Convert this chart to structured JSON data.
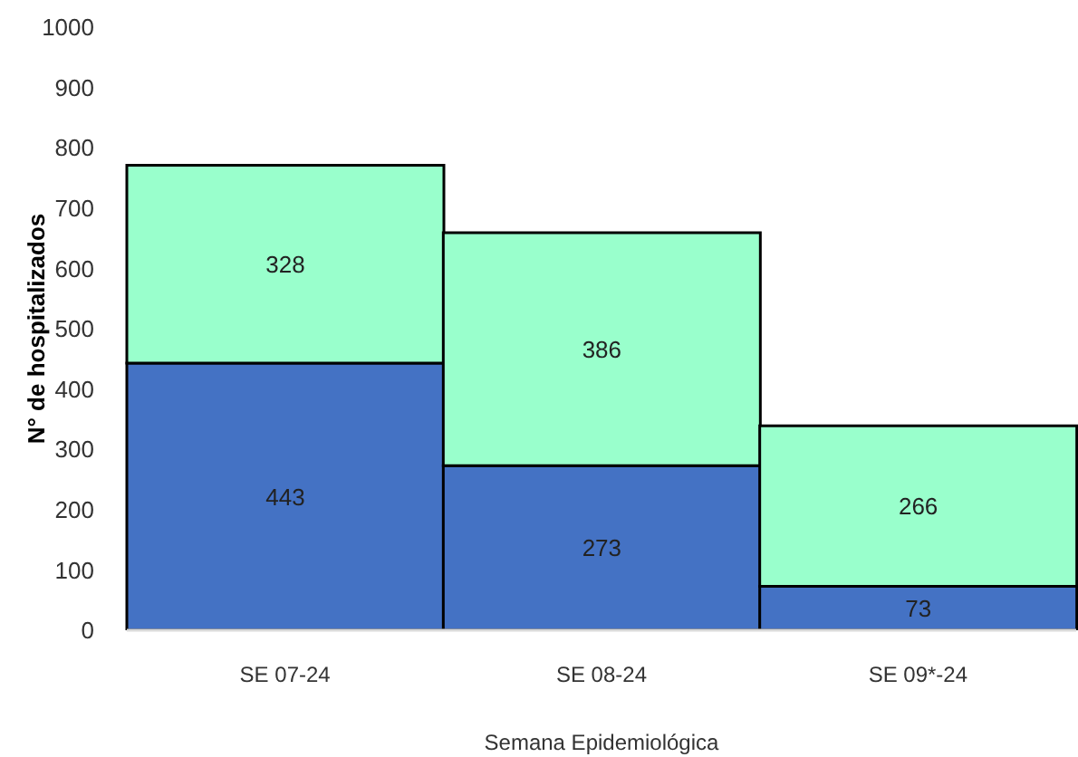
{
  "chart_data": {
    "type": "bar",
    "stacked": true,
    "xlabel": "Semana Epidemiológica",
    "ylabel": "N° de hospitalizados",
    "categories": [
      "SE 07-24",
      "SE 08-24",
      "SE 09*-24"
    ],
    "series": [
      {
        "color": "#4472c4",
        "values": [
          443,
          273,
          73
        ]
      },
      {
        "color": "#99ffcc",
        "values": [
          328,
          386,
          266
        ]
      }
    ],
    "ylim": [
      0,
      1000
    ],
    "yticks": [
      0,
      100,
      200,
      300,
      400,
      500,
      600,
      700,
      800,
      900,
      1000
    ],
    "grid": false,
    "legend": false,
    "data_labels": true
  }
}
